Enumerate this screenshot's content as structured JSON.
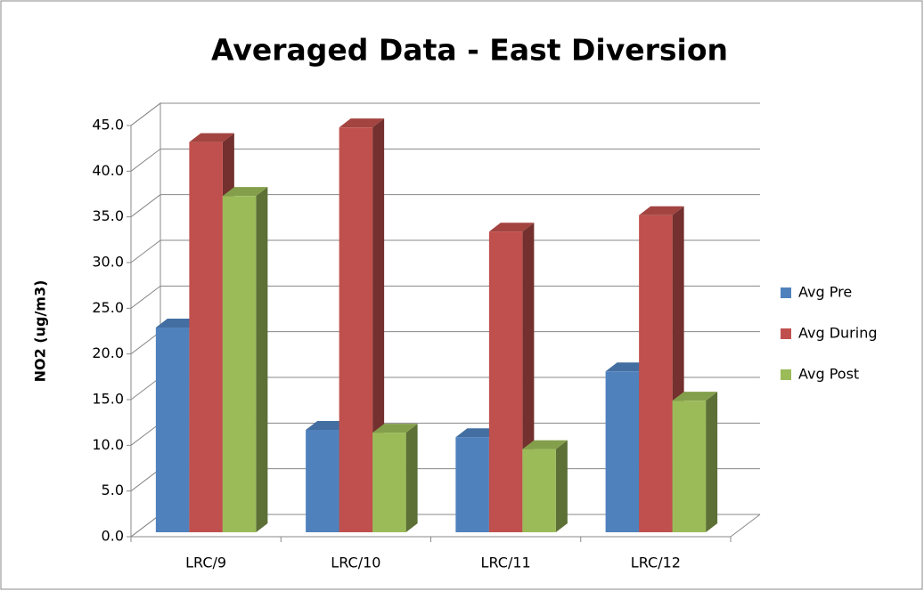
{
  "chart_data": {
    "type": "bar3d",
    "title": "Averaged Data - East Diversion",
    "y_label": "NO2 (ug/m3)",
    "categories": [
      "LRC/9",
      "LRC/10",
      "LRC/11",
      "LRC/12"
    ],
    "series": [
      {
        "name": "Avg Pre",
        "color": "#4f81bd",
        "values": [
          22.4,
          11.2,
          10.4,
          17.6
        ]
      },
      {
        "name": "Avg During",
        "color": "#c0504d",
        "values": [
          42.7,
          44.3,
          32.9,
          34.7
        ]
      },
      {
        "name": "Avg Post",
        "color": "#9bbb59",
        "values": [
          36.8,
          10.9,
          9.1,
          14.4
        ]
      }
    ],
    "ylim": [
      0,
      45
    ],
    "yticks": [
      {
        "value": 0,
        "label": "0.0"
      },
      {
        "value": 5,
        "label": "5.0"
      },
      {
        "value": 10,
        "label": "10.0"
      },
      {
        "value": 15,
        "label": "15.0"
      },
      {
        "value": 20,
        "label": "20.0"
      },
      {
        "value": 25,
        "label": "25.0"
      },
      {
        "value": 30,
        "label": "30.0"
      },
      {
        "value": 35,
        "label": "35.0"
      },
      {
        "value": 40,
        "label": "40.0"
      },
      {
        "value": 45,
        "label": "45.0"
      }
    ],
    "grid": true,
    "legend": "right"
  }
}
